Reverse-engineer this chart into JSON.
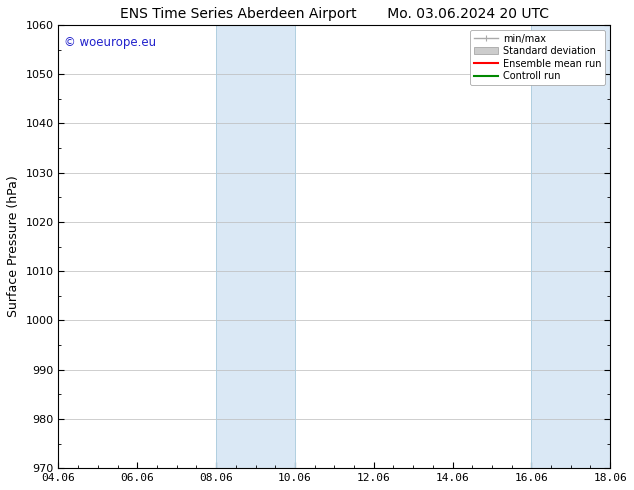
{
  "title_left": "ENS Time Series Aberdeen Airport",
  "title_right": "Mo. 03.06.2024 20 UTC",
  "ylabel": "Surface Pressure (hPa)",
  "ylim": [
    970,
    1060
  ],
  "yticks": [
    970,
    980,
    990,
    1000,
    1010,
    1020,
    1030,
    1040,
    1050,
    1060
  ],
  "xlim_start": 0,
  "xlim_end": 14,
  "xtick_labels": [
    "04.06",
    "06.06",
    "08.06",
    "10.06",
    "12.06",
    "14.06",
    "16.06",
    "18.06"
  ],
  "xtick_positions": [
    0,
    2,
    4,
    6,
    8,
    10,
    12,
    14
  ],
  "shaded_bands": [
    {
      "x_start": 4,
      "x_end": 6
    },
    {
      "x_start": 12,
      "x_end": 14
    }
  ],
  "band_color": "#dae8f5",
  "band_edge_color": "#b0cfe0",
  "watermark_text": "© woeurope.eu",
  "watermark_color": "#2222cc",
  "legend_items": [
    {
      "label": "min/max",
      "color": "#aaaaaa",
      "lw": 1.0,
      "ls": "-"
    },
    {
      "label": "Standard deviation",
      "color": "#cccccc",
      "lw": 6,
      "ls": "-"
    },
    {
      "label": "Ensemble mean run",
      "color": "#ff0000",
      "lw": 1.5,
      "ls": "-"
    },
    {
      "label": "Controll run",
      "color": "#008800",
      "lw": 1.5,
      "ls": "-"
    }
  ],
  "bg_color": "#ffffff",
  "grid_color": "#bbbbbb",
  "title_fontsize": 10,
  "tick_fontsize": 8,
  "label_fontsize": 9,
  "watermark_fontsize": 8.5
}
